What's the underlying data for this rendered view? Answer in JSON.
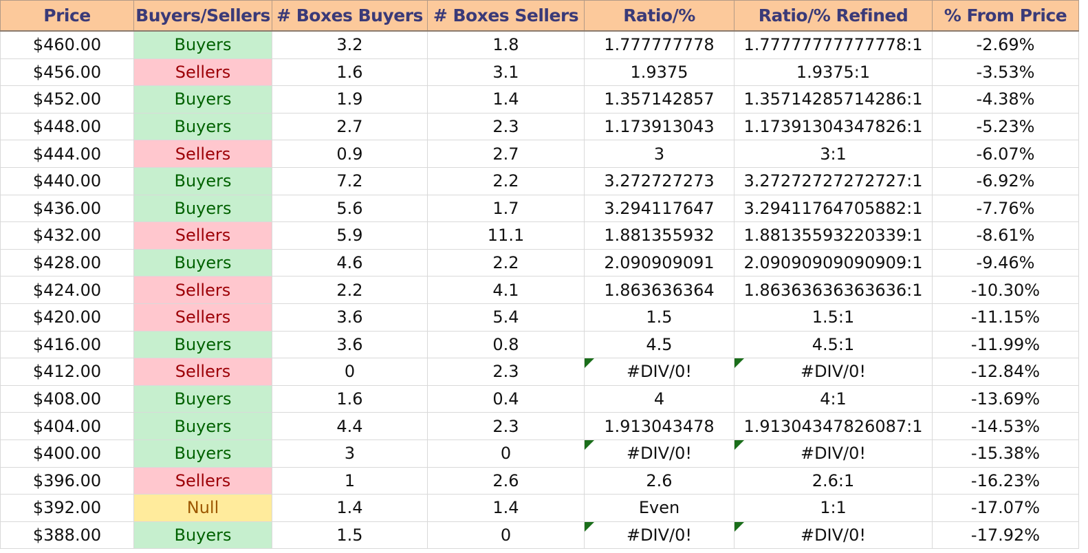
{
  "headers": [
    "Price",
    "Buyers/Sellers",
    "# Boxes Buyers",
    "# Boxes Sellers",
    "Ratio/%",
    "Ratio/% Refined",
    "% From Price"
  ],
  "rows": [
    {
      "price": "$460.00",
      "side": "Buyers",
      "buyers": "3.2",
      "sellers": "1.8",
      "ratio": "1.777777778",
      "refined": "1.77777777777778:1",
      "pct": "-2.69%",
      "error": false
    },
    {
      "price": "$456.00",
      "side": "Sellers",
      "buyers": "1.6",
      "sellers": "3.1",
      "ratio": "1.9375",
      "refined": "1.9375:1",
      "pct": "-3.53%",
      "error": false
    },
    {
      "price": "$452.00",
      "side": "Buyers",
      "buyers": "1.9",
      "sellers": "1.4",
      "ratio": "1.357142857",
      "refined": "1.35714285714286:1",
      "pct": "-4.38%",
      "error": false
    },
    {
      "price": "$448.00",
      "side": "Buyers",
      "buyers": "2.7",
      "sellers": "2.3",
      "ratio": "1.173913043",
      "refined": "1.17391304347826:1",
      "pct": "-5.23%",
      "error": false
    },
    {
      "price": "$444.00",
      "side": "Sellers",
      "buyers": "0.9",
      "sellers": "2.7",
      "ratio": "3",
      "refined": "3:1",
      "pct": "-6.07%",
      "error": false
    },
    {
      "price": "$440.00",
      "side": "Buyers",
      "buyers": "7.2",
      "sellers": "2.2",
      "ratio": "3.272727273",
      "refined": "3.27272727272727:1",
      "pct": "-6.92%",
      "error": false
    },
    {
      "price": "$436.00",
      "side": "Buyers",
      "buyers": "5.6",
      "sellers": "1.7",
      "ratio": "3.294117647",
      "refined": "3.29411764705882:1",
      "pct": "-7.76%",
      "error": false
    },
    {
      "price": "$432.00",
      "side": "Sellers",
      "buyers": "5.9",
      "sellers": "11.1",
      "ratio": "1.881355932",
      "refined": "1.88135593220339:1",
      "pct": "-8.61%",
      "error": false
    },
    {
      "price": "$428.00",
      "side": "Buyers",
      "buyers": "4.6",
      "sellers": "2.2",
      "ratio": "2.090909091",
      "refined": "2.09090909090909:1",
      "pct": "-9.46%",
      "error": false
    },
    {
      "price": "$424.00",
      "side": "Sellers",
      "buyers": "2.2",
      "sellers": "4.1",
      "ratio": "1.863636364",
      "refined": "1.86363636363636:1",
      "pct": "-10.30%",
      "error": false
    },
    {
      "price": "$420.00",
      "side": "Sellers",
      "buyers": "3.6",
      "sellers": "5.4",
      "ratio": "1.5",
      "refined": "1.5:1",
      "pct": "-11.15%",
      "error": false
    },
    {
      "price": "$416.00",
      "side": "Buyers",
      "buyers": "3.6",
      "sellers": "0.8",
      "ratio": "4.5",
      "refined": "4.5:1",
      "pct": "-11.99%",
      "error": false
    },
    {
      "price": "$412.00",
      "side": "Sellers",
      "buyers": "0",
      "sellers": "2.3",
      "ratio": "#DIV/0!",
      "refined": "#DIV/0!",
      "pct": "-12.84%",
      "error": true
    },
    {
      "price": "$408.00",
      "side": "Buyers",
      "buyers": "1.6",
      "sellers": "0.4",
      "ratio": "4",
      "refined": "4:1",
      "pct": "-13.69%",
      "error": false
    },
    {
      "price": "$404.00",
      "side": "Buyers",
      "buyers": "4.4",
      "sellers": "2.3",
      "ratio": "1.913043478",
      "refined": "1.91304347826087:1",
      "pct": "-14.53%",
      "error": false
    },
    {
      "price": "$400.00",
      "side": "Buyers",
      "buyers": "3",
      "sellers": "0",
      "ratio": "#DIV/0!",
      "refined": "#DIV/0!",
      "pct": "-15.38%",
      "error": true
    },
    {
      "price": "$396.00",
      "side": "Sellers",
      "buyers": "1",
      "sellers": "2.6",
      "ratio": "2.6",
      "refined": "2.6:1",
      "pct": "-16.23%",
      "error": false
    },
    {
      "price": "$392.00",
      "side": "Null",
      "buyers": "1.4",
      "sellers": "1.4",
      "ratio": "Even",
      "refined": "1:1",
      "pct": "-17.07%",
      "error": false
    },
    {
      "price": "$388.00",
      "side": "Buyers",
      "buyers": "1.5",
      "sellers": "0",
      "ratio": "#DIV/0!",
      "refined": "#DIV/0!",
      "pct": "-17.92%",
      "error": true
    }
  ],
  "colors": {
    "header_bg": "#fcc99b",
    "header_text": "#3a3a78",
    "buyers_bg": "#c6efce",
    "buyers_text": "#006100",
    "sellers_bg": "#ffc7ce",
    "sellers_text": "#9c0006",
    "null_bg": "#ffeb9c",
    "null_text": "#9c5700",
    "error_flag": "#1a6e1a"
  }
}
